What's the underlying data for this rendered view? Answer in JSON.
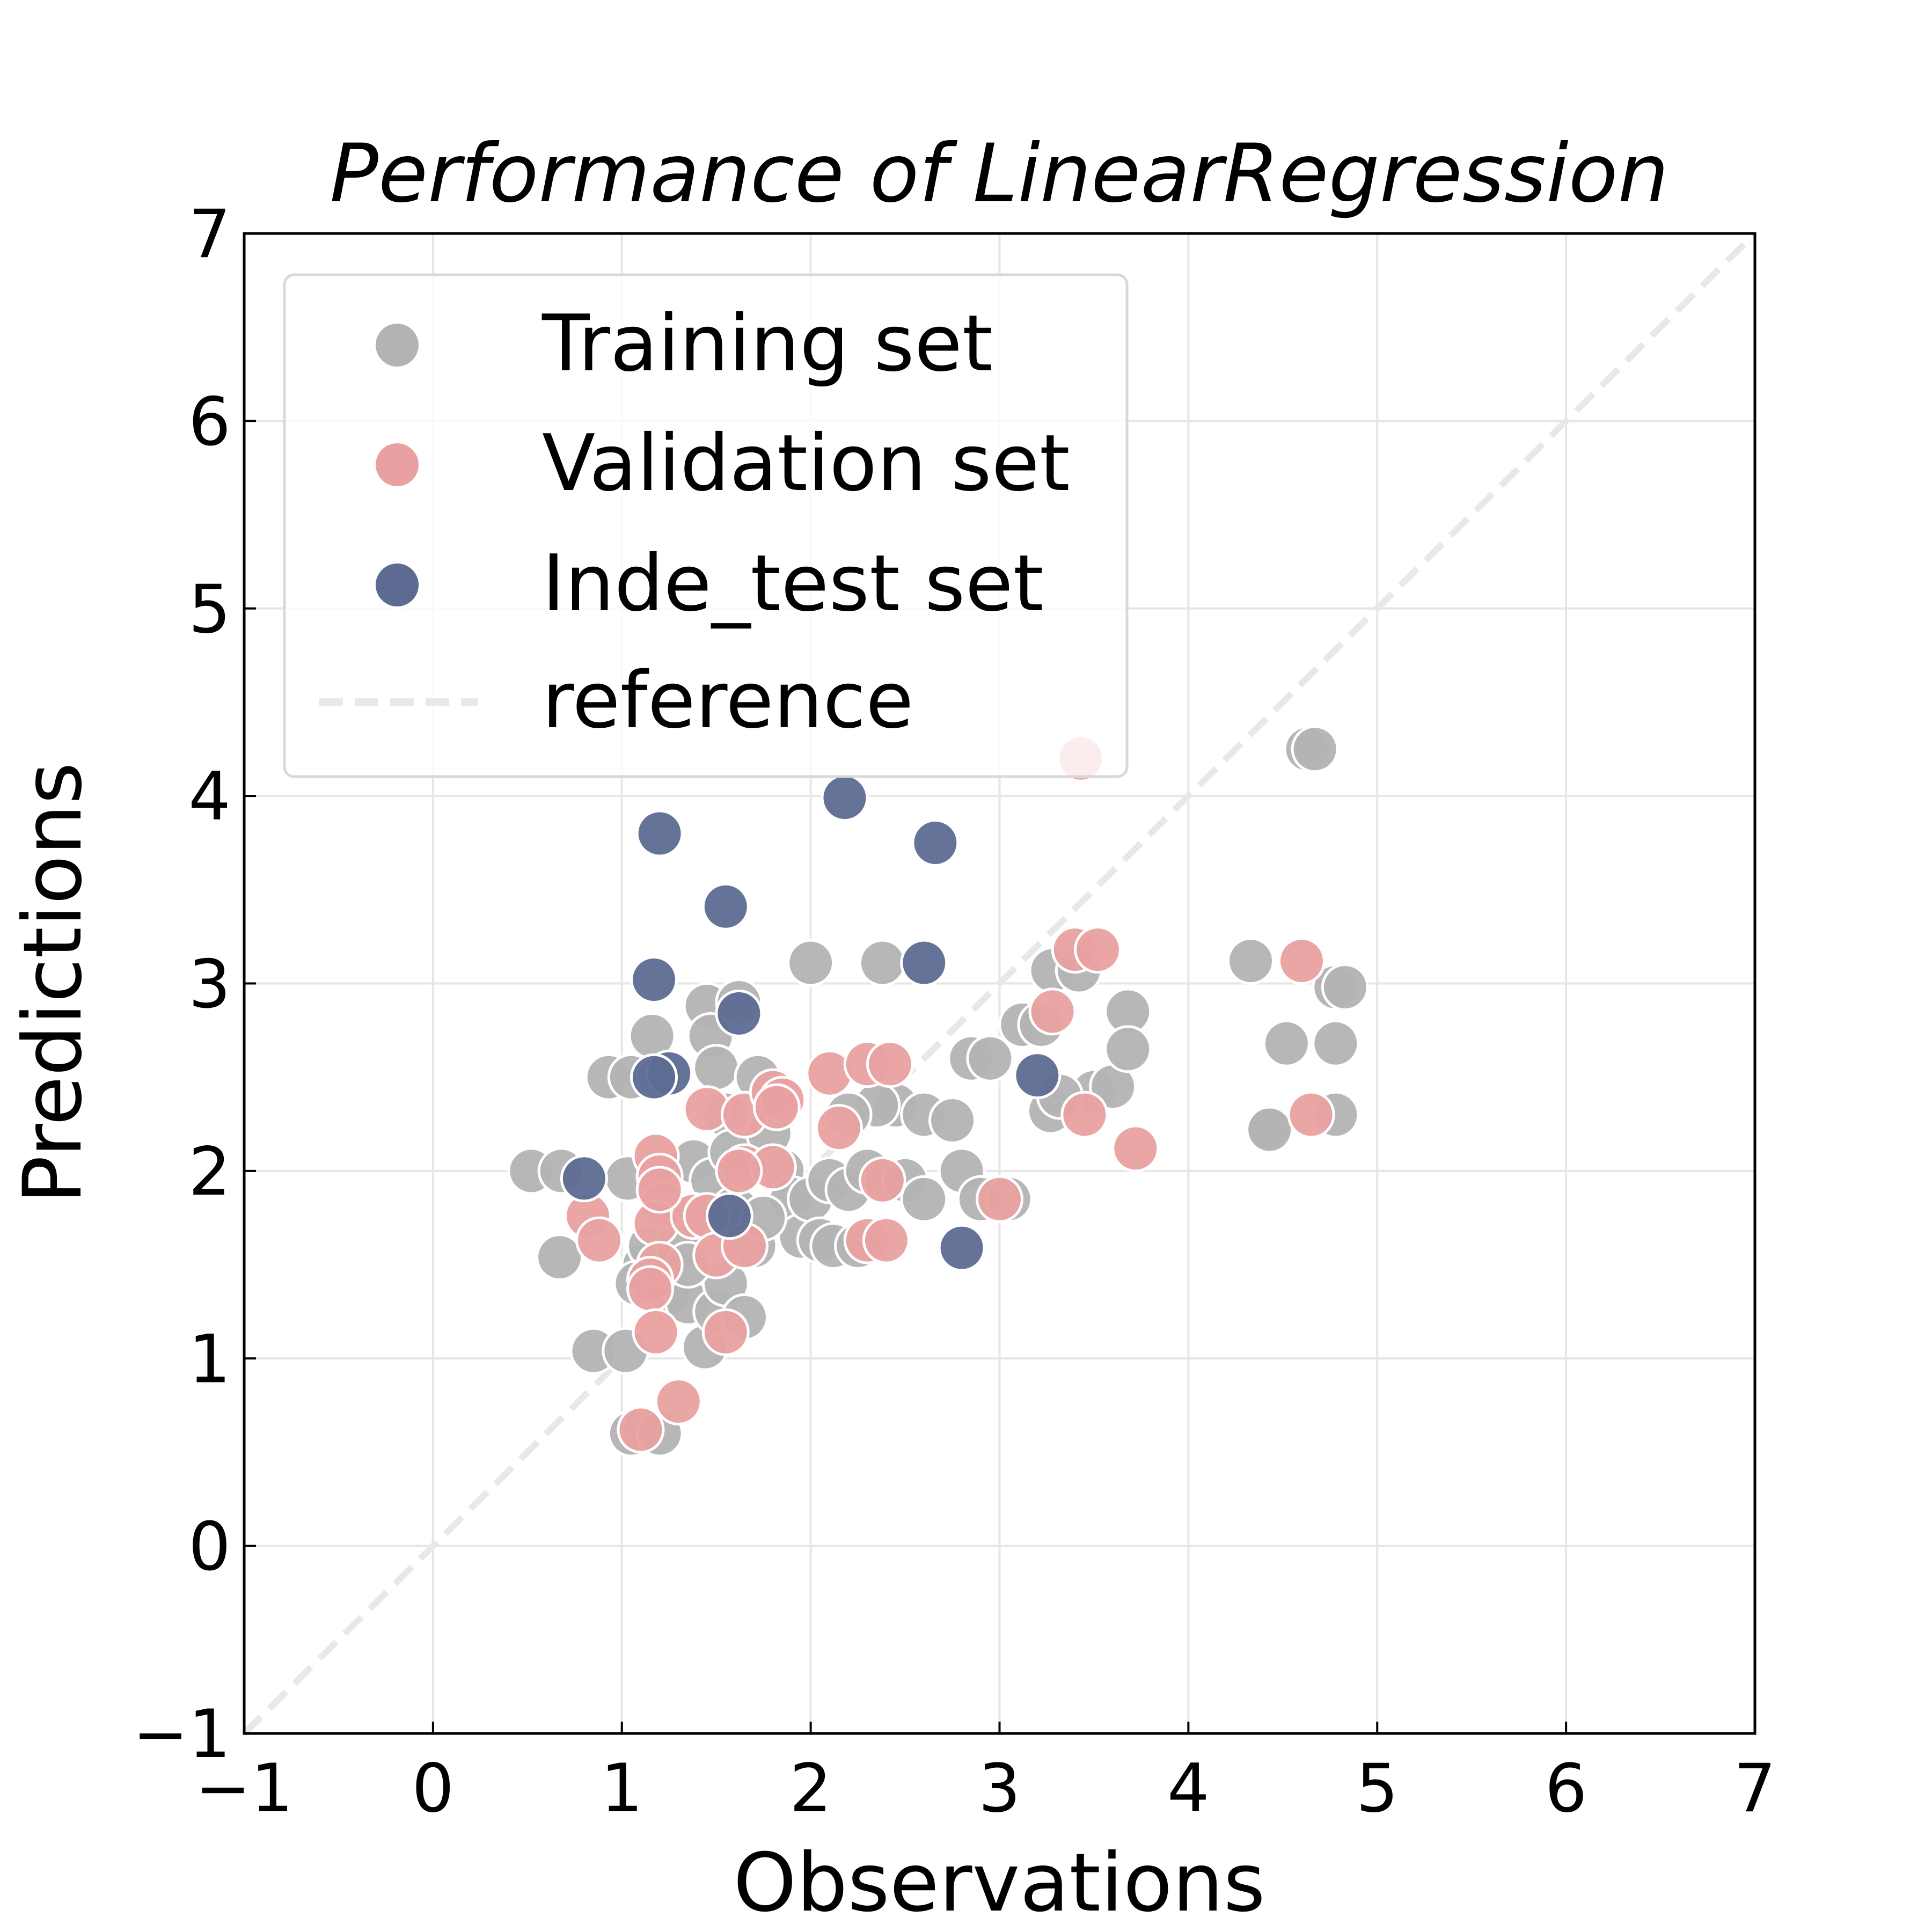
{
  "chart_data": {
    "type": "scatter",
    "title": "Performance of LinearRegression",
    "xlabel": "Observations",
    "ylabel": "Predictions",
    "xlim": [
      -1,
      7
    ],
    "ylim": [
      -1,
      7
    ],
    "x_ticks": [
      -1,
      0,
      1,
      2,
      3,
      4,
      5,
      6,
      7
    ],
    "y_ticks": [
      -1,
      0,
      1,
      2,
      3,
      4,
      5,
      6,
      7
    ],
    "x_tick_labels": [
      "−1",
      "0",
      "1",
      "2",
      "3",
      "4",
      "5",
      "6",
      "7"
    ],
    "y_tick_labels": [
      "−1",
      "0",
      "1",
      "2",
      "3",
      "4",
      "5",
      "6",
      "7"
    ],
    "grid": true,
    "legend_position": "top-left",
    "series": [
      {
        "name": "Training set",
        "color": "#b3b3b3",
        "points": [
          [
            0.52,
            2.0
          ],
          [
            0.68,
            2.0
          ],
          [
            0.67,
            1.54
          ],
          [
            0.85,
            1.04
          ],
          [
            1.02,
            1.04
          ],
          [
            0.93,
            2.5
          ],
          [
            1.05,
            2.5
          ],
          [
            1.2,
            2.5
          ],
          [
            1.05,
            0.6
          ],
          [
            1.12,
            0.62
          ],
          [
            1.2,
            0.6
          ],
          [
            1.03,
            1.96
          ],
          [
            1.12,
            1.5
          ],
          [
            1.15,
            1.6
          ],
          [
            1.08,
            1.4
          ],
          [
            1.25,
            1.35
          ],
          [
            1.35,
            1.3
          ],
          [
            1.44,
            1.06
          ],
          [
            1.5,
            1.25
          ],
          [
            1.55,
            1.4
          ],
          [
            1.65,
            1.22
          ],
          [
            1.7,
            1.6
          ],
          [
            1.16,
            2.72
          ],
          [
            1.45,
            2.88
          ],
          [
            1.47,
            2.72
          ],
          [
            1.62,
            2.9
          ],
          [
            1.5,
            2.55
          ],
          [
            1.55,
            2.3
          ],
          [
            1.38,
            2.05
          ],
          [
            1.48,
            1.95
          ],
          [
            1.58,
            2.1
          ],
          [
            1.72,
            2.5
          ],
          [
            1.78,
            2.2
          ],
          [
            1.85,
            2.0
          ],
          [
            1.9,
            1.85
          ],
          [
            1.95,
            1.65
          ],
          [
            2.0,
            1.85
          ],
          [
            2.05,
            1.63
          ],
          [
            2.12,
            1.6
          ],
          [
            2.25,
            1.6
          ],
          [
            2.0,
            3.11
          ],
          [
            2.38,
            3.11
          ],
          [
            2.1,
            1.95
          ],
          [
            2.2,
            1.9
          ],
          [
            2.3,
            2.0
          ],
          [
            2.4,
            1.95
          ],
          [
            2.5,
            1.95
          ],
          [
            2.45,
            2.35
          ],
          [
            2.35,
            2.35
          ],
          [
            2.2,
            2.3
          ],
          [
            2.6,
            2.3
          ],
          [
            2.75,
            2.27
          ],
          [
            2.6,
            1.85
          ],
          [
            2.8,
            2.0
          ],
          [
            2.9,
            1.85
          ],
          [
            3.05,
            1.85
          ],
          [
            2.85,
            2.6
          ],
          [
            2.95,
            2.6
          ],
          [
            3.12,
            2.78
          ],
          [
            3.22,
            2.78
          ],
          [
            3.28,
            3.07
          ],
          [
            3.42,
            3.07
          ],
          [
            3.5,
            2.42
          ],
          [
            3.6,
            2.45
          ],
          [
            3.27,
            2.32
          ],
          [
            3.32,
            2.4
          ],
          [
            3.68,
            2.85
          ],
          [
            3.68,
            2.65
          ],
          [
            4.33,
            3.12
          ],
          [
            4.52,
            2.68
          ],
          [
            4.42,
            2.23
          ],
          [
            4.43,
            2.22
          ],
          [
            4.63,
            4.25
          ],
          [
            4.67,
            4.25
          ],
          [
            4.78,
            2.98
          ],
          [
            4.83,
            2.98
          ],
          [
            4.78,
            2.68
          ],
          [
            4.78,
            2.3
          ],
          [
            1.6,
            1.8
          ],
          [
            1.75,
            1.75
          ],
          [
            1.3,
            1.6
          ],
          [
            1.35,
            1.5
          ]
        ]
      },
      {
        "name": "Validation set",
        "color": "#e9a0a0",
        "points": [
          [
            0.82,
            1.76
          ],
          [
            0.88,
            1.63
          ],
          [
            1.18,
            2.08
          ],
          [
            1.2,
            1.97
          ],
          [
            1.22,
            1.82
          ],
          [
            1.18,
            1.72
          ],
          [
            1.2,
            1.5
          ],
          [
            1.15,
            1.42
          ],
          [
            1.15,
            1.37
          ],
          [
            1.18,
            1.14
          ],
          [
            1.1,
            0.62
          ],
          [
            1.3,
            0.77
          ],
          [
            1.38,
            1.76
          ],
          [
            1.45,
            1.76
          ],
          [
            1.5,
            1.55
          ],
          [
            1.55,
            1.14
          ],
          [
            1.45,
            2.33
          ],
          [
            1.65,
            2.3
          ],
          [
            1.65,
            2.02
          ],
          [
            1.8,
            2.02
          ],
          [
            1.65,
            1.6
          ],
          [
            1.8,
            2.42
          ],
          [
            1.85,
            2.38
          ],
          [
            1.82,
            2.34
          ],
          [
            2.1,
            2.52
          ],
          [
            2.15,
            2.23
          ],
          [
            2.3,
            2.57
          ],
          [
            2.42,
            2.57
          ],
          [
            2.38,
            1.95
          ],
          [
            2.3,
            1.63
          ],
          [
            2.4,
            1.63
          ],
          [
            3.0,
            1.85
          ],
          [
            3.28,
            2.85
          ],
          [
            3.4,
            3.18
          ],
          [
            3.52,
            3.18
          ],
          [
            3.45,
            2.3
          ],
          [
            3.72,
            2.12
          ],
          [
            3.43,
            4.2
          ],
          [
            4.6,
            3.12
          ],
          [
            4.65,
            2.3
          ],
          [
            1.2,
            1.9
          ],
          [
            1.62,
            2.0
          ]
        ]
      },
      {
        "name": "Inde_test set",
        "color": "#5d6b92",
        "points": [
          [
            0.8,
            1.96
          ],
          [
            1.2,
            3.8
          ],
          [
            1.55,
            3.41
          ],
          [
            1.17,
            3.02
          ],
          [
            1.25,
            2.52
          ],
          [
            1.17,
            2.5
          ],
          [
            1.62,
            2.84
          ],
          [
            1.57,
            1.76
          ],
          [
            2.18,
            3.99
          ],
          [
            2.66,
            3.75
          ],
          [
            2.6,
            3.11
          ],
          [
            3.2,
            2.51
          ],
          [
            2.8,
            1.59
          ]
        ]
      },
      {
        "name": "reference",
        "color": "#e8e8e8",
        "style": "dashed",
        "points": [
          [
            -1,
            -1
          ],
          [
            7,
            7
          ]
        ]
      }
    ]
  }
}
